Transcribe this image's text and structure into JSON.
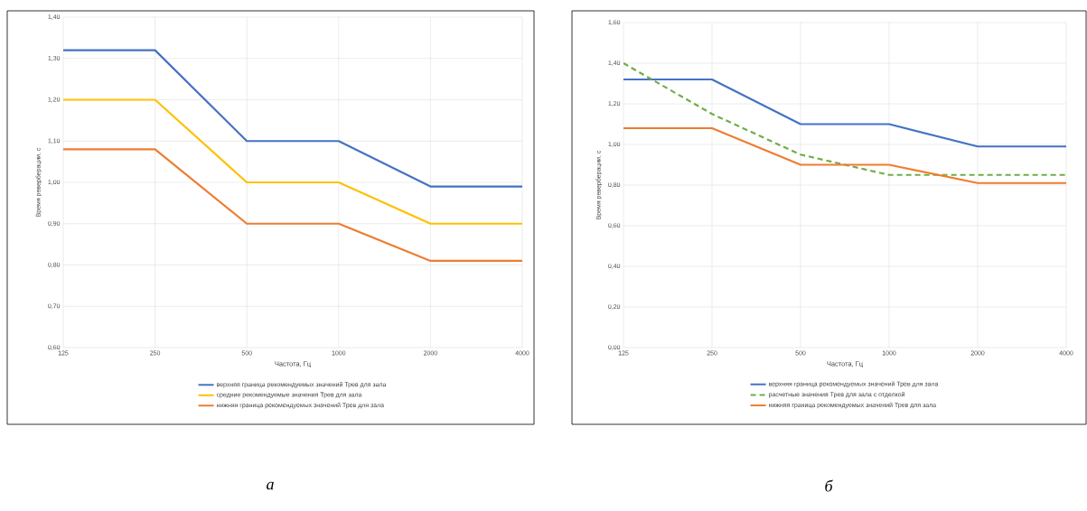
{
  "chart_data": [
    {
      "type": "line",
      "xlabel": "Частота, Гц",
      "ylabel": "Время реверберации, с",
      "categories": [
        "125",
        "250",
        "500",
        "1000",
        "2000",
        "4000"
      ],
      "series": [
        {
          "name": "верхняя граница рекомендуемых значений Трев для зала",
          "color": "#4472c4",
          "values": [
            1.32,
            1.32,
            1.1,
            1.1,
            0.99,
            0.99
          ]
        },
        {
          "name": "средние рекомендуемые значения Трев для зала",
          "color": "#ffc000",
          "values": [
            1.2,
            1.2,
            1.0,
            1.0,
            0.9,
            0.9
          ]
        },
        {
          "name": "нижняя граница рекомендуемых значений Трев для зала",
          "color": "#ed7d31",
          "values": [
            1.08,
            1.08,
            0.9,
            0.9,
            0.81,
            0.81
          ]
        }
      ],
      "ylim": [
        0.6,
        1.4
      ],
      "yticks": [
        {
          "value": 0.6,
          "label": "0,60"
        },
        {
          "value": 0.7,
          "label": "0,70"
        },
        {
          "value": 0.8,
          "label": "0,80"
        },
        {
          "value": 0.9,
          "label": "0,90"
        },
        {
          "value": 1.0,
          "label": "1,00"
        },
        {
          "value": 1.1,
          "label": "1,10"
        },
        {
          "value": 1.2,
          "label": "1,20"
        },
        {
          "value": 1.3,
          "label": "1,30"
        },
        {
          "value": 1.4,
          "label": "1,40"
        }
      ],
      "grid": true,
      "legend": "bottom",
      "marker": "none",
      "line_style": "solid",
      "annotations": [
        "а"
      ]
    },
    {
      "type": "line",
      "xlabel": "Частота, Гц",
      "ylabel": "Время реверберации, с",
      "categories": [
        "125",
        "250",
        "500",
        "1000",
        "2000",
        "4000"
      ],
      "series": [
        {
          "name": "верхняя граница рекомендуемых значений Трев для зала",
          "color": "#4472c4",
          "values": [
            1.32,
            1.32,
            1.1,
            1.1,
            0.99,
            0.99
          ]
        },
        {
          "name": "расчетные значения Трев для зала с отделкой",
          "color": "#70ad47",
          "values": [
            1.4,
            1.15,
            0.95,
            0.85,
            0.85,
            0.85
          ],
          "line_style": "dashed"
        },
        {
          "name": "нижняя граница рекомендуемых значений Трев для зала",
          "color": "#ed7d31",
          "values": [
            1.08,
            1.08,
            0.9,
            0.9,
            0.81,
            0.81
          ]
        }
      ],
      "ylim": [
        0,
        1.6
      ],
      "yticks": [
        {
          "value": 0,
          "label": "0,00"
        },
        {
          "value": 0.2,
          "label": "0,20"
        },
        {
          "value": 0.4,
          "label": "0,40"
        },
        {
          "value": 0.6,
          "label": "0,60"
        },
        {
          "value": 0.8,
          "label": "0,80"
        },
        {
          "value": 1.0,
          "label": "1,00"
        },
        {
          "value": 1.2,
          "label": "1,20"
        },
        {
          "value": 1.4,
          "label": "1,40"
        },
        {
          "value": 1.6,
          "label": "1,60"
        }
      ],
      "grid": true,
      "legend": "bottom",
      "marker": "none",
      "line_style": "solid",
      "annotations": [
        "б"
      ]
    }
  ]
}
